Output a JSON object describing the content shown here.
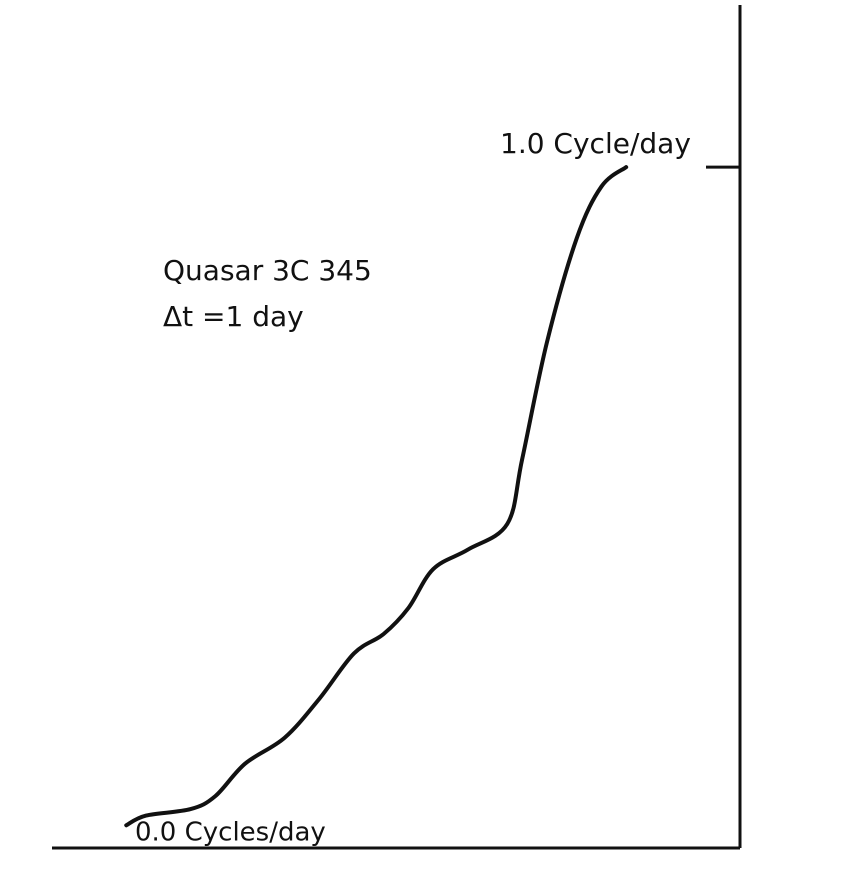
{
  "chart_data": {
    "type": "line",
    "annotations": [
      "1.0 Cycle/day",
      "Quasar 3C 345",
      "Δt =1 day",
      "0.0 Cycles/day"
    ],
    "x": [
      -0.01,
      0.03,
      0.12,
      0.17,
      0.23,
      0.31,
      0.38,
      0.45,
      0.51,
      0.56,
      0.61,
      0.68,
      0.76,
      0.79,
      0.84,
      0.9,
      0.95,
      1.0
    ],
    "values": [
      -0.015,
      0,
      0.01,
      0.03,
      0.08,
      0.12,
      0.18,
      0.25,
      0.28,
      0.32,
      0.38,
      0.41,
      0.45,
      0.55,
      0.73,
      0.89,
      0.97,
      1.0
    ],
    "color": "#111111",
    "xlim": [
      -0.16,
      1.23
    ],
    "ylim": [
      -0.05,
      1.25
    ],
    "yticks": [
      1
    ]
  }
}
